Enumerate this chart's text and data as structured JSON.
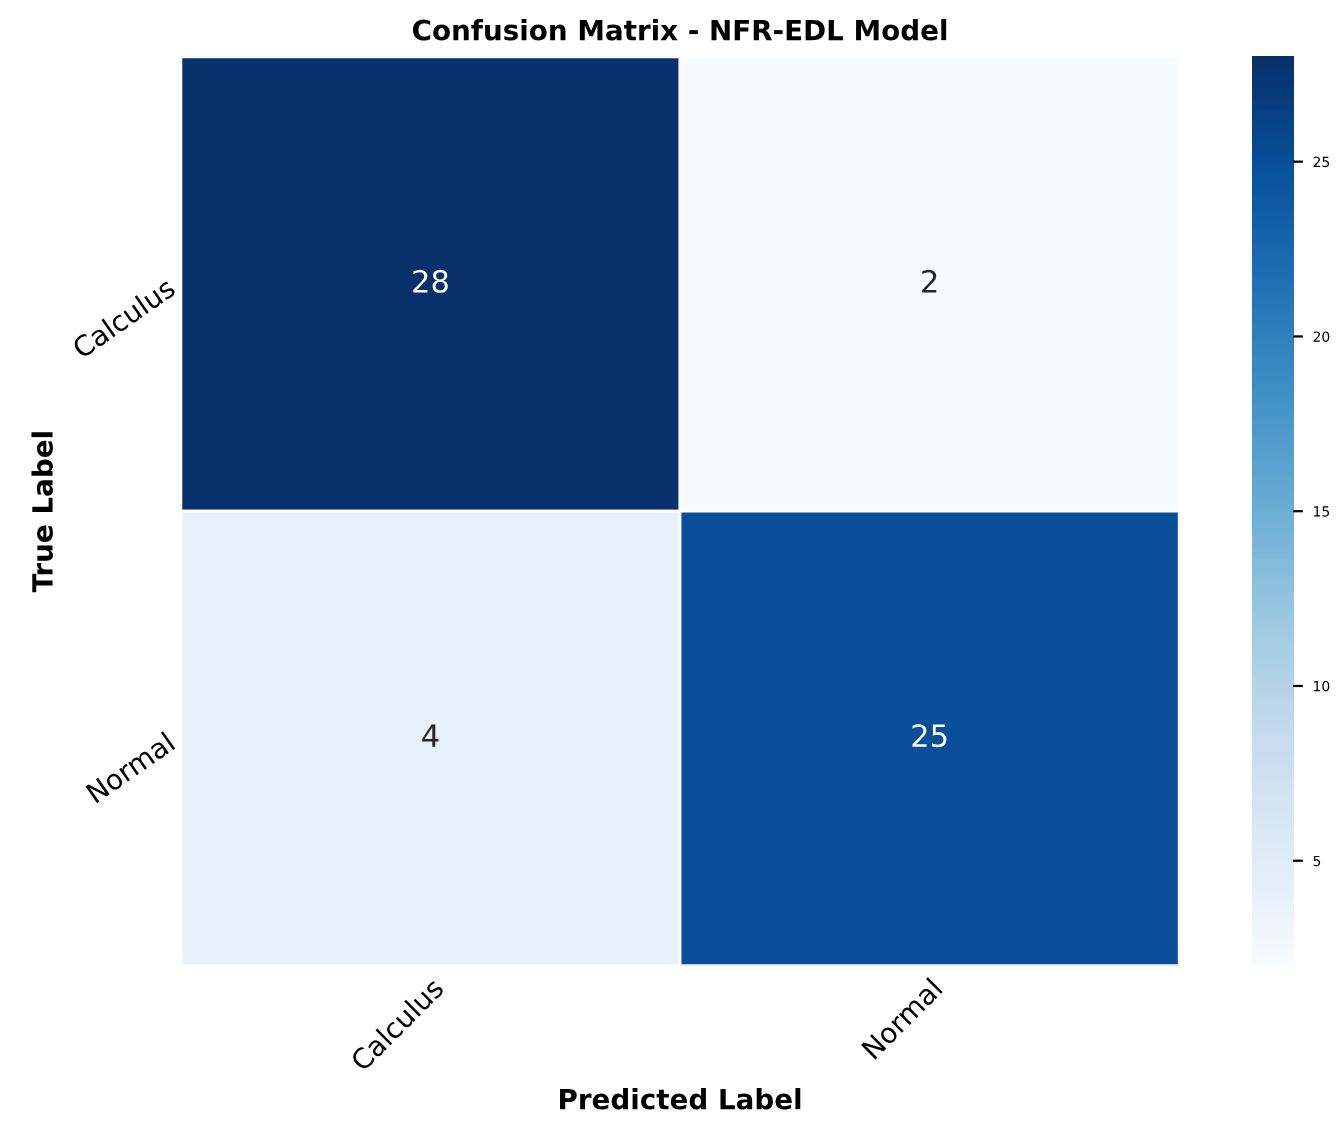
{
  "chart_data": {
    "type": "heatmap",
    "title": "Confusion Matrix - NFR-EDL Model",
    "xlabel": "Predicted Label",
    "ylabel": "True Label",
    "categories": [
      "Calculus",
      "Normal"
    ],
    "y_categories": [
      "Calculus",
      "Normal"
    ],
    "cells": [
      [
        28,
        2
      ],
      [
        4,
        25
      ]
    ],
    "clim": [
      2,
      28
    ],
    "cticks": [
      5,
      10,
      15,
      20,
      25
    ],
    "data_labels": true
  }
}
